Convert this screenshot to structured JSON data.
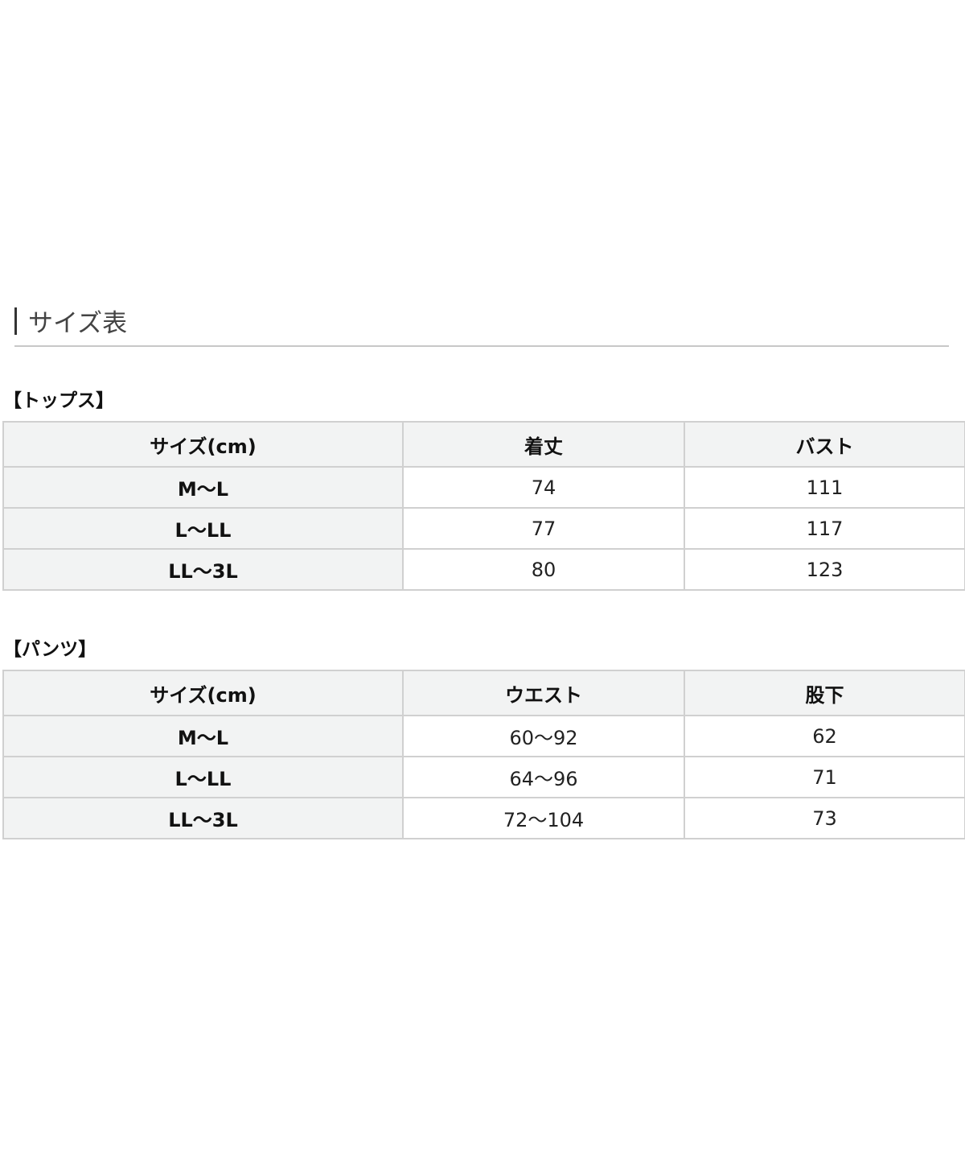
{
  "title": "サイズ表",
  "tops": {
    "label": "【トップス】",
    "headers": [
      "サイズ(cm)",
      "着丈",
      "バスト"
    ],
    "rows": [
      [
        "M～L",
        "74",
        "111"
      ],
      [
        "L～LL",
        "77",
        "117"
      ],
      [
        "LL～3L",
        "80",
        "123"
      ]
    ]
  },
  "pants": {
    "label": "【パンツ】",
    "headers": [
      "サイズ(cm)",
      "ウエスト",
      "股下"
    ],
    "rows": [
      [
        "M～L",
        "60～92",
        "62"
      ],
      [
        "L～LL",
        "64～96",
        "71"
      ],
      [
        "LL～3L",
        "72～104",
        "73"
      ]
    ]
  }
}
